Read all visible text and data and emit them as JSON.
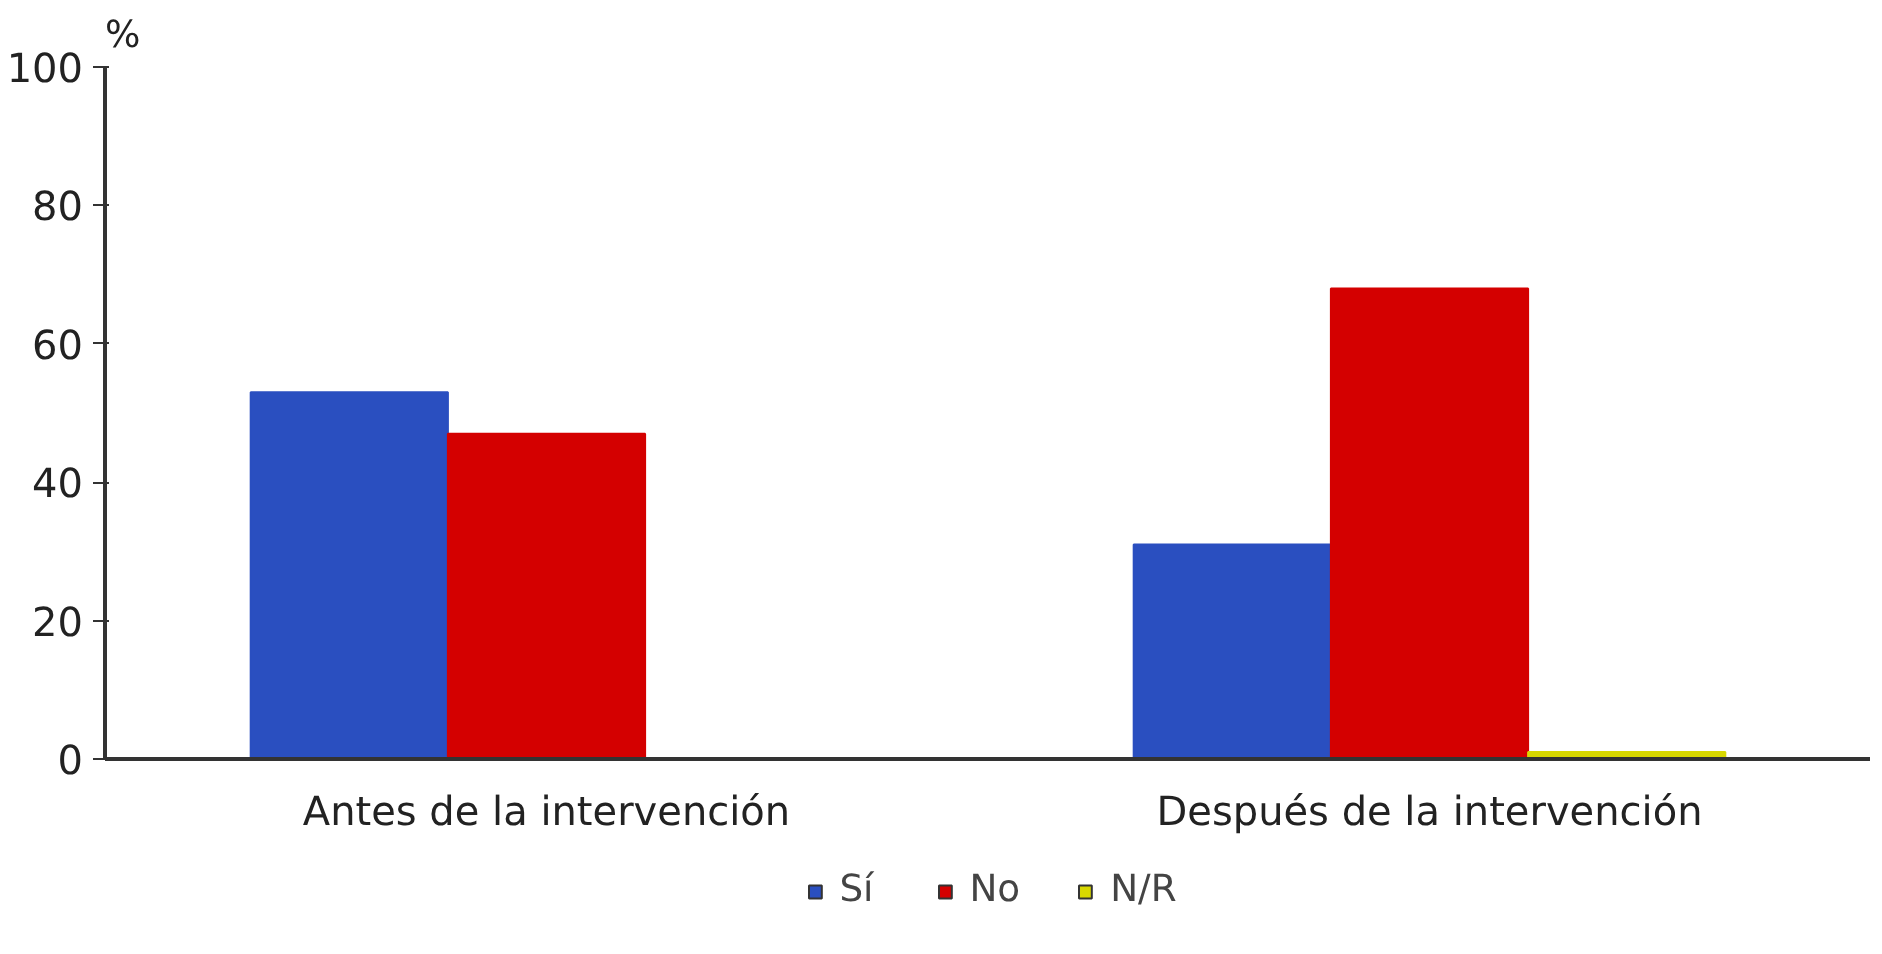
{
  "chart_data": {
    "type": "bar",
    "ylabel": "%",
    "categories": [
      "Antes de la intervención",
      "Después de la intervención"
    ],
    "series": [
      {
        "name": "Sí",
        "color": "#2a4fc0",
        "values": [
          53,
          31
        ]
      },
      {
        "name": "No",
        "color": "#d40000",
        "values": [
          47,
          68
        ]
      },
      {
        "name": "N/R",
        "color": "#d8d800",
        "values": [
          0,
          1
        ]
      }
    ],
    "ylim": [
      0,
      100
    ],
    "yticks": [
      0,
      20,
      40,
      60,
      80,
      100
    ],
    "grid": false,
    "legend": "bottom"
  }
}
